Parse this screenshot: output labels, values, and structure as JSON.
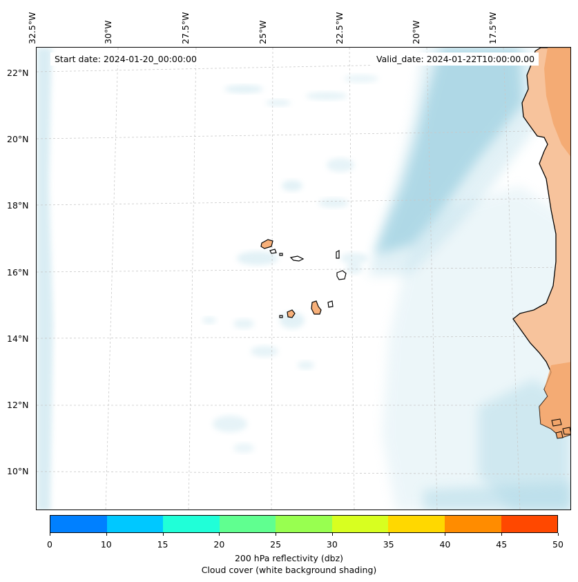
{
  "map": {
    "start_label": "Start date: 2024-01-20_00:00:00",
    "valid_label": "Valid_date: 2024-01-22T10:00:00.00",
    "lon_ticks": [
      "32.5°W",
      "30°W",
      "27.5°W",
      "25°W",
      "22.5°W",
      "20°W",
      "17.5°W"
    ],
    "lat_ticks": [
      "22°N",
      "20°N",
      "18°N",
      "16°N",
      "14°N",
      "12°N",
      "10°N"
    ],
    "land_color": "#f5b07a",
    "cloud_color": "#add8e6"
  },
  "colorbar": {
    "ticks": [
      "0",
      "10",
      "15",
      "20",
      "25",
      "30",
      "35",
      "40",
      "45",
      "50"
    ],
    "colors": [
      "#0080ff",
      "#00c8ff",
      "#20ffd8",
      "#60ff90",
      "#98ff50",
      "#d8ff20",
      "#ffd800",
      "#ff8c00",
      "#ff4800"
    ],
    "label": "200 hPa reflectivity (dbz)",
    "sublabel": "Cloud cover (white background shading)"
  }
}
